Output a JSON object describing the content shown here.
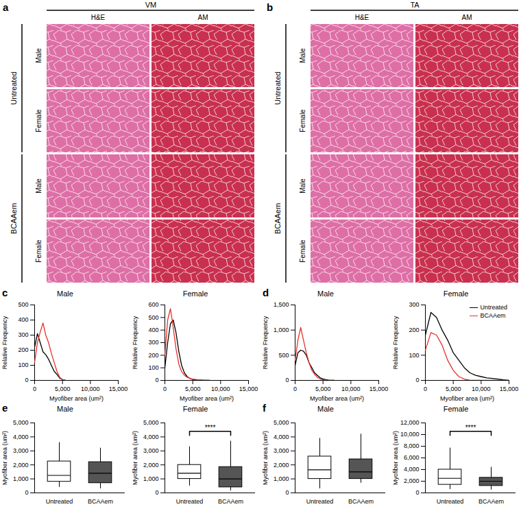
{
  "image_panels": [
    {
      "label": "a",
      "muscle": "VM",
      "columns": [
        "H&E",
        "AM"
      ],
      "groups": [
        {
          "name": "Untreated",
          "rows": [
            "Male",
            "Female"
          ]
        },
        {
          "name": "BCAAem",
          "rows": [
            "Male",
            "Female"
          ]
        }
      ]
    },
    {
      "label": "b",
      "muscle": "TA",
      "columns": [
        "H&E",
        "AM"
      ],
      "groups": [
        {
          "name": "Untreated",
          "rows": [
            "Male",
            "Female"
          ]
        },
        {
          "name": "BCAAem",
          "rows": [
            "Male",
            "Female"
          ]
        }
      ]
    }
  ],
  "chart_data": [
    {
      "type": "line",
      "panel": "c",
      "title": "Male",
      "xlabel": "Myofiber area (um²)",
      "ylabel": "Relative Frequency",
      "x": [
        0,
        500,
        1000,
        1500,
        2000,
        2500,
        3000,
        3500,
        4000,
        4500,
        5000,
        5500
      ],
      "series": [
        {
          "name": "Untreated",
          "color": "#000000",
          "values": [
            220,
            310,
            250,
            190,
            170,
            140,
            100,
            60,
            40,
            15,
            5,
            0
          ]
        },
        {
          "name": "BCAAem",
          "color": "#e8302a",
          "values": [
            120,
            250,
            320,
            380,
            300,
            250,
            180,
            120,
            60,
            20,
            5,
            0
          ]
        }
      ],
      "xlim": [
        0,
        15000
      ],
      "xticks": [
        0,
        {
          "value": 5000,
          "label": "5,000"
        },
        {
          "value": 10000,
          "label": "10,000"
        },
        {
          "value": 15000,
          "label": "15,000"
        }
      ],
      "ylim": [
        0,
        500
      ],
      "yticks": [
        0,
        100,
        200,
        300,
        400,
        500
      ]
    },
    {
      "type": "line",
      "title": "Female",
      "xlabel": "Myofiber area (um²)",
      "ylabel": "Relative Frequency",
      "x": [
        0,
        500,
        1000,
        1500,
        2000,
        2500,
        3000,
        3500,
        4000,
        4500,
        5000,
        5500,
        6000,
        6500,
        7000,
        7500,
        8000
      ],
      "series": [
        {
          "name": "Untreated",
          "color": "#000000",
          "values": [
            100,
            300,
            450,
            480,
            380,
            230,
            120,
            60,
            30,
            15,
            8,
            5,
            3,
            2,
            1,
            0,
            0
          ]
        },
        {
          "name": "BCAAem",
          "color": "#e8302a",
          "values": [
            200,
            480,
            570,
            420,
            250,
            130,
            70,
            40,
            25,
            15,
            10,
            8,
            5,
            3,
            1,
            0,
            0
          ]
        }
      ],
      "xlim": [
        0,
        15000
      ],
      "xticks": [
        0,
        {
          "value": 5000,
          "label": "5,000"
        },
        {
          "value": 10000,
          "label": "10,000"
        },
        {
          "value": 15000,
          "label": "15,000"
        }
      ],
      "ylim": [
        0,
        600
      ],
      "yticks": [
        0,
        100,
        200,
        300,
        400,
        500,
        600
      ]
    },
    {
      "type": "line",
      "panel": "d",
      "title": "Male",
      "xlabel": "Myofiber area (um²)",
      "ylabel": "Relative Frequency",
      "x": [
        0,
        500,
        1000,
        1500,
        2000,
        2500,
        3000,
        3500,
        4000,
        4500,
        5000,
        5500,
        6000,
        6500,
        7000
      ],
      "series": [
        {
          "name": "Untreated",
          "color": "#000000",
          "values": [
            300,
            550,
            600,
            580,
            500,
            350,
            250,
            150,
            100,
            50,
            30,
            15,
            5,
            0,
            0
          ]
        },
        {
          "name": "BCAAem",
          "color": "#e8302a",
          "values": [
            400,
            800,
            1050,
            800,
            550,
            350,
            200,
            120,
            60,
            30,
            10,
            5,
            0,
            0,
            0
          ]
        }
      ],
      "xlim": [
        0,
        15000
      ],
      "xticks": [
        0,
        {
          "value": 5000,
          "label": "5,000"
        },
        {
          "value": 10000,
          "label": "10,000"
        },
        {
          "value": 15000,
          "label": "15,000"
        }
      ],
      "ylim": [
        0,
        1500
      ],
      "yticks": [
        0,
        500,
        {
          "value": 1000,
          "label": "1,000"
        },
        {
          "value": 1500,
          "label": "1,500"
        }
      ]
    },
    {
      "type": "line",
      "title": "Female",
      "xlabel": "Myofiber area (um²)",
      "ylabel": "Relative Frequency",
      "legend": "top-right",
      "x": [
        0,
        1000,
        2000,
        3000,
        4000,
        5000,
        6000,
        7000,
        8000,
        9000,
        10000,
        11000,
        12000,
        13000,
        14000,
        15000
      ],
      "series": [
        {
          "name": "Untreated",
          "color": "#000000",
          "values": [
            180,
            270,
            250,
            200,
            160,
            110,
            80,
            50,
            30,
            20,
            15,
            10,
            8,
            5,
            2,
            0
          ]
        },
        {
          "name": "BCAAem",
          "color": "#e8302a",
          "values": [
            120,
            190,
            180,
            140,
            80,
            40,
            15,
            5,
            0,
            0,
            0,
            0,
            0,
            0,
            0,
            0
          ]
        }
      ],
      "xlim": [
        0,
        15000
      ],
      "xticks": [
        0,
        {
          "value": 5000,
          "label": "5,000"
        },
        {
          "value": 10000,
          "label": "10,000"
        },
        {
          "value": 15000,
          "label": "15,000"
        }
      ],
      "ylim": [
        0,
        300
      ],
      "yticks": [
        0,
        100,
        200,
        300
      ]
    },
    {
      "type": "box",
      "panel": "e",
      "title": "Male",
      "ylabel": "Myofiber area (um²)",
      "categories": [
        "Untreated",
        "BCAAem"
      ],
      "colors": [
        "#ffffff",
        "#555555"
      ],
      "low": [
        400,
        300
      ],
      "q1": [
        800,
        700
      ],
      "median": [
        1250,
        1400
      ],
      "q3": [
        2250,
        2200
      ],
      "high": [
        3600,
        3200
      ],
      "ylim": [
        0,
        5000
      ],
      "yticks": [
        0,
        {
          "value": 1000,
          "label": "1,000"
        },
        {
          "value": 2000,
          "label": "2,000"
        },
        {
          "value": 3000,
          "label": "3,000"
        },
        {
          "value": 4000,
          "label": "4,000"
        },
        {
          "value": 5000,
          "label": "5,000"
        }
      ]
    },
    {
      "type": "box",
      "title": "Female",
      "ylabel": "Myofiber area (um²)",
      "annotation": "****",
      "categories": [
        "Untreated",
        "BCAAem"
      ],
      "colors": [
        "#ffffff",
        "#555555"
      ],
      "low": [
        500,
        150
      ],
      "q1": [
        1000,
        400
      ],
      "median": [
        1400,
        1000
      ],
      "q3": [
        2000,
        1850
      ],
      "high": [
        3300,
        3700
      ],
      "ylim": [
        0,
        5000
      ],
      "yticks": [
        0,
        {
          "value": 1000,
          "label": "1,000"
        },
        {
          "value": 2000,
          "label": "2,000"
        },
        {
          "value": 3000,
          "label": "3,000"
        },
        {
          "value": 4000,
          "label": "4,000"
        },
        {
          "value": 5000,
          "label": "5,000"
        }
      ]
    },
    {
      "type": "box",
      "panel": "f",
      "title": "Male",
      "ylabel": "Myofiber area (um²)",
      "categories": [
        "Untreated",
        "BCAAem"
      ],
      "colors": [
        "#ffffff",
        "#555555"
      ],
      "low": [
        300,
        700
      ],
      "q1": [
        1000,
        1000
      ],
      "median": [
        1650,
        1500
      ],
      "q3": [
        2600,
        2400
      ],
      "high": [
        3900,
        4200
      ],
      "ylim": [
        0,
        5000
      ],
      "yticks": [
        0,
        {
          "value": 1000,
          "label": "1,000"
        },
        {
          "value": 2000,
          "label": "2,000"
        },
        {
          "value": 3000,
          "label": "3,000"
        },
        {
          "value": 4000,
          "label": "4,000"
        },
        {
          "value": 5000,
          "label": "5,000"
        }
      ]
    },
    {
      "type": "box",
      "title": "Female",
      "ylabel": "Myofiber area (um²)",
      "annotation": "****",
      "categories": [
        "Untreated",
        "BCAAem"
      ],
      "colors": [
        "#ffffff",
        "#555555"
      ],
      "low": [
        600,
        500
      ],
      "q1": [
        1400,
        1200
      ],
      "median": [
        2500,
        2000
      ],
      "q3": [
        4000,
        2600
      ],
      "high": [
        7700,
        4400
      ],
      "ylim": [
        0,
        12000
      ],
      "yticks": [
        0,
        {
          "value": 2000,
          "label": "2,000"
        },
        {
          "value": 4000,
          "label": "4,000"
        },
        {
          "value": 6000,
          "label": "6,000"
        },
        {
          "value": 8000,
          "label": "8,000"
        },
        {
          "value": 10000,
          "label": "10,000"
        },
        {
          "value": 12000,
          "label": "12,000"
        }
      ]
    }
  ]
}
